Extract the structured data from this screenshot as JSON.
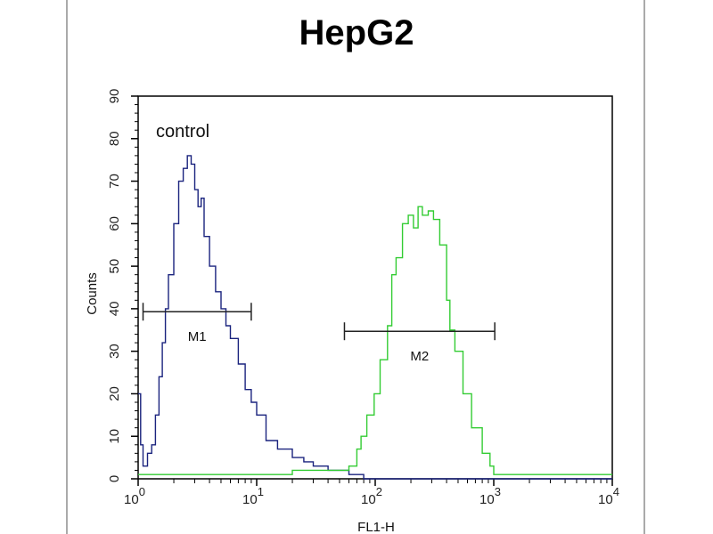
{
  "chart_data": {
    "type": "histogram-overlay",
    "title": "HepG2",
    "xlabel": "FL1-H",
    "ylabel": "Counts",
    "xscale": "log",
    "xlim": [
      1,
      10000
    ],
    "ylim": [
      0,
      90
    ],
    "x_ticks": [
      {
        "value": 1,
        "base": "10",
        "exp": "0"
      },
      {
        "value": 10,
        "base": "10",
        "exp": "1"
      },
      {
        "value": 100,
        "base": "10",
        "exp": "2"
      },
      {
        "value": 1000,
        "base": "10",
        "exp": "3"
      },
      {
        "value": 10000,
        "base": "10",
        "exp": "4"
      }
    ],
    "y_ticks": [
      "0",
      "10",
      "20",
      "30",
      "40",
      "50",
      "60",
      "70",
      "80",
      "90"
    ],
    "annotations": [
      {
        "text": "control"
      }
    ],
    "series": [
      {
        "name": "control",
        "color": "#1a237e",
        "points": [
          [
            1,
            20
          ],
          [
            1.05,
            8
          ],
          [
            1.1,
            3
          ],
          [
            1.2,
            6
          ],
          [
            1.3,
            8
          ],
          [
            1.4,
            15
          ],
          [
            1.5,
            24
          ],
          [
            1.6,
            32
          ],
          [
            1.7,
            40
          ],
          [
            1.8,
            48
          ],
          [
            2.0,
            60
          ],
          [
            2.2,
            70
          ],
          [
            2.4,
            73
          ],
          [
            2.6,
            76
          ],
          [
            2.8,
            74
          ],
          [
            3.0,
            68
          ],
          [
            3.2,
            64
          ],
          [
            3.4,
            66
          ],
          [
            3.6,
            57
          ],
          [
            4.0,
            50
          ],
          [
            4.5,
            44
          ],
          [
            5.0,
            40
          ],
          [
            5.5,
            36
          ],
          [
            6.0,
            33
          ],
          [
            7.0,
            27
          ],
          [
            8.0,
            21
          ],
          [
            9.0,
            18
          ],
          [
            10,
            15
          ],
          [
            12,
            9
          ],
          [
            15,
            7
          ],
          [
            20,
            5
          ],
          [
            25,
            4
          ],
          [
            30,
            3
          ],
          [
            40,
            2
          ],
          [
            50,
            2
          ],
          [
            60,
            1
          ],
          [
            80,
            0
          ],
          [
            100,
            0
          ],
          [
            1000,
            0
          ],
          [
            10000,
            0
          ]
        ]
      },
      {
        "name": "",
        "color": "#33cc33",
        "points": [
          [
            1,
            1
          ],
          [
            2,
            1
          ],
          [
            5,
            1
          ],
          [
            10,
            1
          ],
          [
            20,
            2
          ],
          [
            40,
            2
          ],
          [
            60,
            3
          ],
          [
            70,
            7
          ],
          [
            76,
            10
          ],
          [
            85,
            15
          ],
          [
            98,
            20
          ],
          [
            110,
            28
          ],
          [
            127,
            36
          ],
          [
            138,
            48
          ],
          [
            150,
            52
          ],
          [
            170,
            60
          ],
          [
            190,
            62
          ],
          [
            210,
            59
          ],
          [
            230,
            64
          ],
          [
            250,
            62
          ],
          [
            280,
            63
          ],
          [
            310,
            61
          ],
          [
            350,
            55
          ],
          [
            400,
            42
          ],
          [
            427,
            35
          ],
          [
            470,
            30
          ],
          [
            550,
            20
          ],
          [
            650,
            12
          ],
          [
            800,
            6
          ],
          [
            930,
            3
          ],
          [
            1000,
            1
          ],
          [
            2000,
            1
          ],
          [
            5000,
            1
          ],
          [
            10000,
            1
          ]
        ]
      }
    ],
    "markers": [
      {
        "label": "M1",
        "from": 1.1,
        "to": 9.0,
        "y": 39.3
      },
      {
        "label": "M2",
        "from": 55,
        "to": 1020,
        "y": 34.7
      }
    ]
  }
}
